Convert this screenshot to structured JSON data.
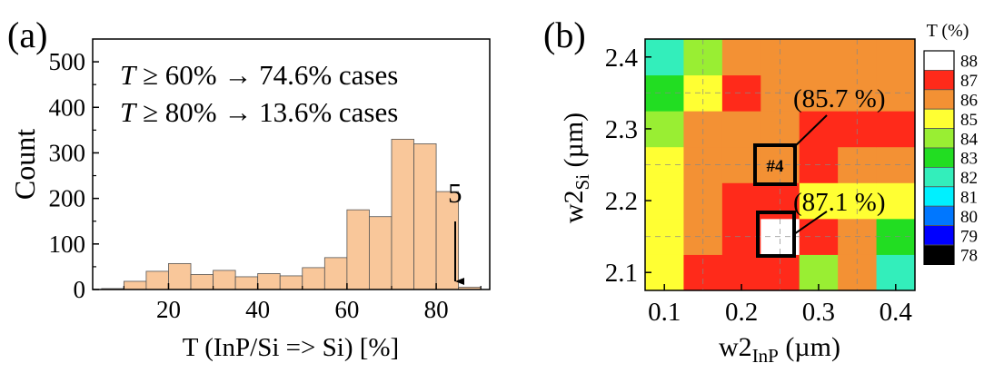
{
  "chart_data": [
    {
      "type": "bar",
      "panel_label": "(a)",
      "xlabel": "T (InP/Si => Si) [%]",
      "ylabel": "Count",
      "xlim": [
        3,
        92
      ],
      "ylim": [
        0,
        550
      ],
      "xticks": [
        20,
        40,
        60,
        80
      ],
      "yticks": [
        0,
        100,
        200,
        300,
        400,
        500
      ],
      "bin_width": 5,
      "bin_starts": [
        5,
        10,
        15,
        20,
        25,
        30,
        35,
        40,
        45,
        50,
        55,
        60,
        65,
        70,
        75,
        80,
        85
      ],
      "values": [
        2,
        18,
        40,
        57,
        33,
        42,
        28,
        35,
        30,
        48,
        70,
        175,
        160,
        330,
        320,
        215,
        5
      ],
      "annotations": {
        "line1": "T ≥ 60% → 74.6% cases",
        "line2": "T ≥ 80% → 13.6% cases",
        "arrow_label": "5"
      }
    },
    {
      "type": "heatmap",
      "panel_label": "(b)",
      "xlabel": "w2",
      "xlabel_sub": "InP",
      "xlabel_unit": " (µm)",
      "ylabel": "w2",
      "ylabel_sub": "Si",
      "ylabel_unit": " (µm)",
      "xlim": [
        0.075,
        0.425
      ],
      "ylim": [
        2.075,
        2.425
      ],
      "xticks": [
        0.1,
        0.2,
        0.3,
        0.4
      ],
      "yticks": [
        2.1,
        2.2,
        2.3,
        2.4
      ],
      "x": [
        0.1,
        0.15,
        0.2,
        0.25,
        0.3,
        0.35,
        0.4
      ],
      "y": [
        2.1,
        2.15,
        2.2,
        2.25,
        2.3,
        2.35,
        2.4
      ],
      "z": [
        [
          84,
          86,
          86,
          86,
          83,
          85,
          81
        ],
        [
          84,
          85,
          86,
          87.1,
          86,
          85,
          82
        ],
        [
          84,
          85,
          86,
          86,
          84,
          84,
          84
        ],
        [
          84,
          85,
          85,
          85.7,
          86,
          85,
          85
        ],
        [
          83,
          85,
          85,
          85,
          86,
          86,
          86
        ],
        [
          82,
          84,
          86,
          85,
          85,
          85,
          85
        ],
        [
          81,
          83,
          85,
          85,
          85,
          85,
          85
        ]
      ],
      "colorbar": {
        "title": "T (%)",
        "levels": [
          88,
          87,
          86,
          85,
          84,
          83,
          82,
          81,
          80,
          79,
          78
        ],
        "colors": [
          "#ffffff",
          "#ff2a1a",
          "#f39134",
          "#ffff33",
          "#99ee33",
          "#22dd22",
          "#33eebb",
          "#00f0ff",
          "#0077ff",
          "#0000ff",
          "#000000"
        ]
      },
      "annotations": {
        "label_upper": "(85.7 %)",
        "label_lower": "(87.1 %)",
        "box_label": "#4"
      }
    }
  ]
}
